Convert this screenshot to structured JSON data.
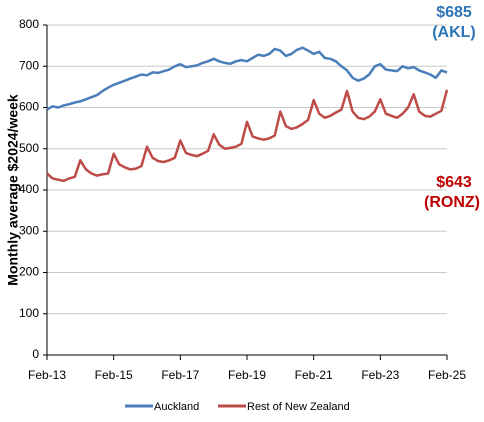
{
  "chart_data": {
    "type": "line",
    "y_label": "Monthly average $2024/week",
    "categories": [
      "Feb-13",
      null,
      null,
      null,
      null,
      null,
      null,
      null,
      null,
      null,
      null,
      null,
      "Feb-15",
      null,
      null,
      null,
      null,
      null,
      null,
      null,
      null,
      null,
      null,
      null,
      "Feb-17",
      null,
      null,
      null,
      null,
      null,
      null,
      null,
      null,
      null,
      null,
      null,
      "Feb-19",
      null,
      null,
      null,
      null,
      null,
      null,
      null,
      null,
      null,
      null,
      null,
      "Feb-21",
      null,
      null,
      null,
      null,
      null,
      null,
      null,
      null,
      null,
      null,
      null,
      "Feb-23",
      null,
      null,
      null,
      null,
      null,
      null,
      null,
      null,
      null,
      null,
      null,
      "Feb-25"
    ],
    "series": [
      {
        "name": "Auckland",
        "color": "#4a7ebb",
        "values": [
          595,
          603,
          600,
          605,
          608,
          612,
          615,
          620,
          625,
          630,
          640,
          648,
          655,
          660,
          665,
          670,
          675,
          680,
          678,
          685,
          684,
          688,
          692,
          700,
          705,
          698,
          700,
          702,
          708,
          712,
          718,
          712,
          708,
          706,
          712,
          715,
          712,
          720,
          728,
          725,
          730,
          742,
          738,
          725,
          730,
          740,
          745,
          738,
          730,
          735,
          720,
          718,
          712,
          700,
          690,
          672,
          665,
          670,
          680,
          700,
          705,
          692,
          690,
          688,
          700,
          695,
          698,
          690,
          685,
          680,
          672,
          690,
          685
        ]
      },
      {
        "name": "Rest of New Zealand",
        "color": "#be4b48",
        "values": [
          440,
          428,
          425,
          422,
          428,
          432,
          472,
          450,
          440,
          435,
          438,
          440,
          488,
          462,
          455,
          450,
          452,
          458,
          505,
          478,
          470,
          468,
          472,
          478,
          520,
          490,
          485,
          482,
          488,
          495,
          535,
          510,
          500,
          502,
          505,
          512,
          565,
          530,
          525,
          522,
          525,
          532,
          590,
          555,
          548,
          552,
          560,
          570,
          618,
          585,
          575,
          580,
          588,
          595,
          640,
          590,
          575,
          572,
          578,
          590,
          620,
          585,
          580,
          575,
          585,
          600,
          632,
          590,
          580,
          578,
          585,
          592,
          643
        ]
      }
    ],
    "annotations": [
      {
        "text": "$685",
        "color": "#2e75b6"
      },
      {
        "text": "(AKL)",
        "color": "#2e75b6"
      },
      {
        "text": "$643",
        "color": "#c00000"
      },
      {
        "text": "(RONZ)",
        "color": "#c00000"
      }
    ],
    "ylim": [
      0,
      800
    ],
    "yticks": [
      0,
      100,
      200,
      300,
      400,
      500,
      600,
      700,
      800
    ],
    "grid": true
  }
}
